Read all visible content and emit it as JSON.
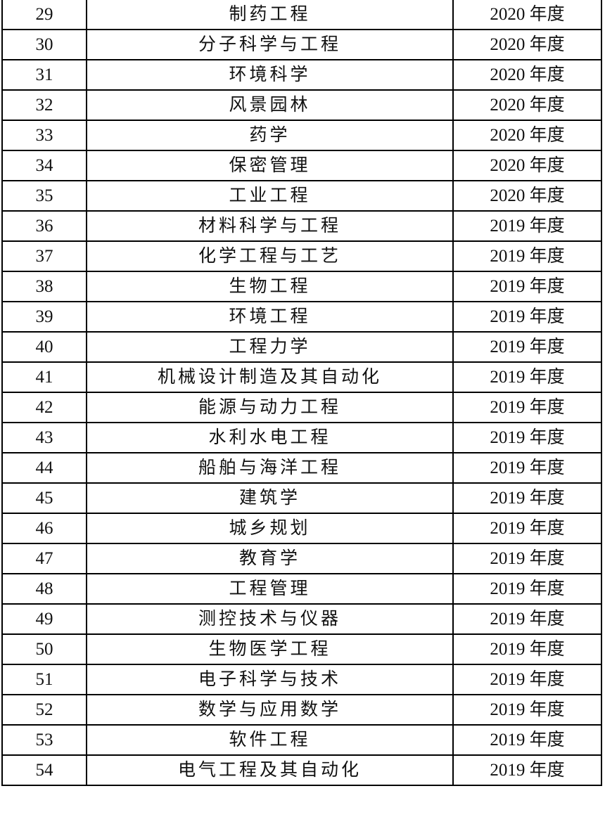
{
  "table": {
    "rows": [
      [
        "29",
        "制药工程",
        "2020 年度"
      ],
      [
        "30",
        "分子科学与工程",
        "2020 年度"
      ],
      [
        "31",
        "环境科学",
        "2020 年度"
      ],
      [
        "32",
        "风景园林",
        "2020 年度"
      ],
      [
        "33",
        "药学",
        "2020 年度"
      ],
      [
        "34",
        "保密管理",
        "2020 年度"
      ],
      [
        "35",
        "工业工程",
        "2020 年度"
      ],
      [
        "36",
        "材料科学与工程",
        "2019 年度"
      ],
      [
        "37",
        "化学工程与工艺",
        "2019 年度"
      ],
      [
        "38",
        "生物工程",
        "2019 年度"
      ],
      [
        "39",
        "环境工程",
        "2019 年度"
      ],
      [
        "40",
        "工程力学",
        "2019 年度"
      ],
      [
        "41",
        "机械设计制造及其自动化",
        "2019 年度"
      ],
      [
        "42",
        "能源与动力工程",
        "2019 年度"
      ],
      [
        "43",
        "水利水电工程",
        "2019 年度"
      ],
      [
        "44",
        "船舶与海洋工程",
        "2019 年度"
      ],
      [
        "45",
        "建筑学",
        "2019 年度"
      ],
      [
        "46",
        "城乡规划",
        "2019 年度"
      ],
      [
        "47",
        "教育学",
        "2019 年度"
      ],
      [
        "48",
        "工程管理",
        "2019 年度"
      ],
      [
        "49",
        "测控技术与仪器",
        "2019 年度"
      ],
      [
        "50",
        "生物医学工程",
        "2019 年度"
      ],
      [
        "51",
        "电子科学与技术",
        "2019 年度"
      ],
      [
        "52",
        "数学与应用数学",
        "2019 年度"
      ],
      [
        "53",
        "软件工程",
        "2019 年度"
      ],
      [
        "54",
        "电气工程及其自动化",
        "2019 年度"
      ]
    ]
  }
}
